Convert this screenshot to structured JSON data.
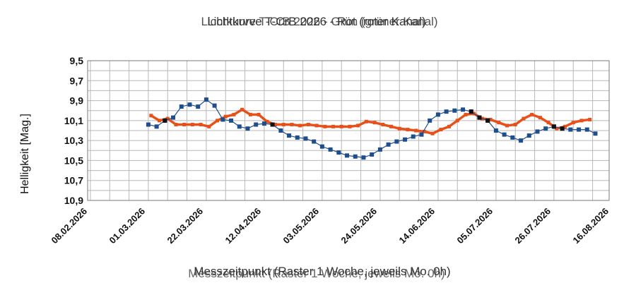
{
  "chart_data": {
    "type": "line",
    "title": "Lichtkurve T-CrB 2026 - Rot (roter Kanal)",
    "title_overlay": "Lichtkurve T-CrB 2026 - Grün (grüner Kanal)",
    "xlabel": "Messzeitpunkt (Raster 1 Woche, jeweils Mo. 0h)",
    "ylabel": "Helligkeit [Mag.]",
    "y_inverted": true,
    "ylim": [
      9.5,
      10.9
    ],
    "yticks": [
      "9,5",
      "9,7",
      "9,9",
      "10,1",
      "10,3",
      "10,5",
      "10,7",
      "10,9"
    ],
    "xlim": [
      "2026-02-08",
      "2026-08-16"
    ],
    "xticks": [
      "08.02.2026",
      "01.03.2026",
      "22.03.2026",
      "12.04.2026",
      "03.05.2026",
      "24.05.2026",
      "14.06.2026",
      "05.07.2026",
      "26.07.2026",
      "16.08.2026"
    ],
    "grid": true,
    "colors": {
      "red": "#e8501a",
      "blue": "#1f4e8c",
      "overlap": "#111111"
    },
    "series": [
      {
        "color": "red",
        "x": [
          "2026-03-03",
          "2026-03-06",
          "2026-03-09",
          "2026-03-12",
          "2026-03-15",
          "2026-03-18",
          "2026-03-21",
          "2026-03-24",
          "2026-03-27",
          "2026-03-30",
          "2026-04-02",
          "2026-04-05",
          "2026-04-08",
          "2026-04-11",
          "2026-04-14",
          "2026-04-17",
          "2026-04-20",
          "2026-04-23",
          "2026-04-26",
          "2026-04-29",
          "2026-05-02",
          "2026-05-05",
          "2026-05-08",
          "2026-05-11",
          "2026-05-14",
          "2026-05-17",
          "2026-05-20",
          "2026-05-23",
          "2026-05-26",
          "2026-05-29",
          "2026-06-01",
          "2026-06-04",
          "2026-06-07",
          "2026-06-10",
          "2026-06-13",
          "2026-06-16",
          "2026-06-19",
          "2026-06-22",
          "2026-06-25",
          "2026-06-28",
          "2026-07-01",
          "2026-07-04",
          "2026-07-07",
          "2026-07-10",
          "2026-07-13",
          "2026-07-16",
          "2026-07-19",
          "2026-07-22",
          "2026-07-25",
          "2026-07-28",
          "2026-07-31",
          "2026-08-03",
          "2026-08-06",
          "2026-08-09"
        ],
        "y": [
          10.05,
          10.1,
          10.08,
          10.14,
          10.14,
          10.14,
          10.14,
          10.16,
          10.1,
          10.06,
          10.04,
          9.99,
          10.04,
          10.04,
          10.11,
          10.14,
          10.14,
          10.14,
          10.15,
          10.14,
          10.15,
          10.16,
          10.16,
          10.16,
          10.16,
          10.15,
          10.11,
          10.12,
          10.14,
          10.16,
          10.18,
          10.19,
          10.2,
          10.21,
          10.23,
          10.19,
          10.16,
          10.1,
          10.04,
          10.03,
          10.08,
          10.09,
          10.12,
          10.15,
          10.14,
          10.08,
          10.04,
          10.07,
          10.12,
          10.18,
          10.16,
          10.12,
          10.1,
          10.09
        ]
      },
      {
        "color": "blue",
        "x": [
          "2026-03-02",
          "2026-03-05",
          "2026-03-08",
          "2026-03-11",
          "2026-03-14",
          "2026-03-17",
          "2026-03-20",
          "2026-03-23",
          "2026-03-26",
          "2026-03-29",
          "2026-04-01",
          "2026-04-04",
          "2026-04-07",
          "2026-04-10",
          "2026-04-13",
          "2026-04-16",
          "2026-04-19",
          "2026-04-22",
          "2026-04-25",
          "2026-04-28",
          "2026-05-01",
          "2026-05-04",
          "2026-05-07",
          "2026-05-10",
          "2026-05-13",
          "2026-05-16",
          "2026-05-19",
          "2026-05-22",
          "2026-05-25",
          "2026-05-28",
          "2026-05-31",
          "2026-06-03",
          "2026-06-06",
          "2026-06-09",
          "2026-06-12",
          "2026-06-15",
          "2026-06-18",
          "2026-06-21",
          "2026-06-24",
          "2026-06-27",
          "2026-06-30",
          "2026-07-03",
          "2026-07-06",
          "2026-07-09",
          "2026-07-12",
          "2026-07-15",
          "2026-07-18",
          "2026-07-21",
          "2026-07-24",
          "2026-07-27",
          "2026-07-30",
          "2026-08-02",
          "2026-08-05",
          "2026-08-08",
          "2026-08-11"
        ],
        "y": [
          10.14,
          10.16,
          10.1,
          10.07,
          9.96,
          9.94,
          9.96,
          9.89,
          9.95,
          10.09,
          10.1,
          10.16,
          10.18,
          10.14,
          10.13,
          10.14,
          10.2,
          10.25,
          10.27,
          10.28,
          10.31,
          10.36,
          10.39,
          10.42,
          10.45,
          10.46,
          10.47,
          10.44,
          10.39,
          10.34,
          10.31,
          10.29,
          10.26,
          10.24,
          10.1,
          10.04,
          10.01,
          10.0,
          9.99,
          10.01,
          10.07,
          10.1,
          10.2,
          10.24,
          10.27,
          10.3,
          10.25,
          10.21,
          10.18,
          10.16,
          10.18,
          10.19,
          10.19,
          10.19,
          10.23
        ]
      }
    ]
  }
}
